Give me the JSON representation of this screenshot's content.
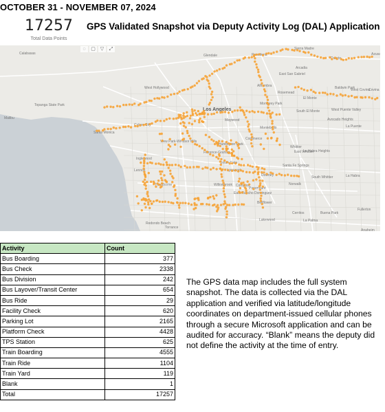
{
  "header": {
    "date_range": "OCTOBER 31 - NOVEMBER 07, 2024",
    "total_value": "17257",
    "total_label": "Total Data Points",
    "title": "GPS Validated Snapshot via Deputy Activity Log (DAL) Application"
  },
  "map": {
    "colors": {
      "land": "#ecebe7",
      "water": "#cbd1d6",
      "major_road": "#ffffff",
      "point": "#f6a336"
    },
    "labels": {
      "calabasas": "Calabasas",
      "glendale": "Glendale",
      "pasadena": "Pasadena",
      "sierra_madre": "Sierra Madre",
      "arcadia": "Arcadia",
      "duarte": "Duarte",
      "azusa": "Azusa",
      "east_san_gabriel": "East San Gabriel",
      "alhambra": "Alhambra",
      "rosemead": "Rosemead",
      "el_monte": "El Monte",
      "baldwin_park": "Baldwin Park",
      "west_covina": "West Covina",
      "covina": "Covina",
      "west_hollywood": "West Hollywood",
      "los_angeles": "Los Angeles",
      "monterey_park": "Monterey Park",
      "south_el_monte": "South El Monte",
      "west_puente_valley": "West Puente Valley",
      "avocado_heights": "Avocado Heights",
      "la_puente": "La Puente",
      "topanga": "Topanga State Park",
      "malibu": "Malibu",
      "santa_monica": "Santa Monica",
      "culver_city": "Culver City",
      "maywood": "Maywood",
      "montebello": "Montebello",
      "view_park": "View Park-Windsor Hills",
      "huntington_park": "Huntington Park",
      "commerce": "Commerce",
      "florence_graham": "Florence-Graham",
      "la_habra_heights": "La Habra Heights",
      "whittier": "Whittier",
      "east_whittier": "East Whittier",
      "inglewood": "Inglewood",
      "south_gate": "South Gate",
      "santa_fe_springs": "Santa Fe Springs",
      "south_whittier": "South Whittier",
      "la_habra": "La Habra",
      "lennox": "Lennox",
      "lynwood": "Lynwood",
      "norwalk": "Norwalk",
      "downey": "Downey",
      "hawthorne": "Hawthorne",
      "willowbrook": "Willowbrook",
      "compton": "Compton",
      "paramount": "Paramount",
      "east_rancho_dominguez": "East Rancho Dominguez",
      "cerritos": "Cerritos",
      "buena_park": "Buena Park",
      "fullerton": "Fullerton",
      "bellflower": "Bellflower",
      "lakewood": "Lakewood",
      "la_palma": "La Palma",
      "redondo_beach": "Redondo Beach",
      "torrance": "Torrance",
      "anaheim": "Anaheim"
    }
  },
  "table": {
    "headers": [
      "Activity",
      "Count"
    ],
    "rows": [
      [
        "Bus Boarding",
        "377"
      ],
      [
        "Bus Check",
        "2338"
      ],
      [
        "Bus Division",
        "242"
      ],
      [
        "Bus Layover/Transit Center",
        "654"
      ],
      [
        "Bus Ride",
        "29"
      ],
      [
        "Facility Check",
        "620"
      ],
      [
        "Parking Lot",
        "2165"
      ],
      [
        "Platform Check",
        "4428"
      ],
      [
        "TPS Station",
        "625"
      ],
      [
        "Train Boarding",
        "4555"
      ],
      [
        "Train Ride",
        "1104"
      ],
      [
        "Train Yard",
        "119"
      ],
      [
        "Blank",
        "1"
      ],
      [
        "Total",
        "17257"
      ]
    ]
  },
  "note": "The GPS data map includes the full system snapshot. The data is collected via the DAL application and verified via latitude/longitude coordinates on department-issued cellular phones through a secure Microsoft application and can be audited for accuracy. “Blank” means the deputy did not define the activity at the time of entry."
}
